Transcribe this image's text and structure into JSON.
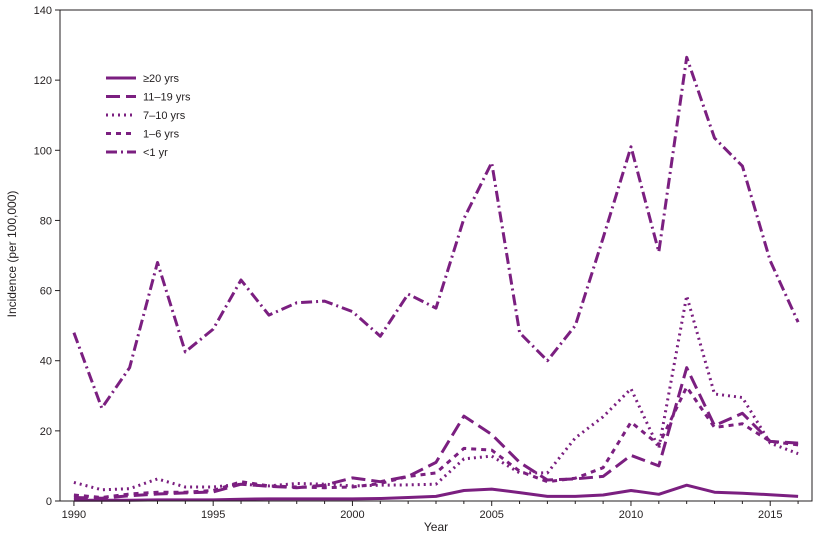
{
  "chart_data": {
    "type": "line",
    "title": "",
    "xlabel": "Year",
    "ylabel": "Incidence (per 100,000)",
    "xlim": [
      1989.5,
      2016.5
    ],
    "ylim": [
      0,
      140
    ],
    "x_ticks": [
      1990,
      1995,
      2000,
      2005,
      2010,
      2015
    ],
    "y_ticks": [
      0,
      20,
      40,
      60,
      80,
      100,
      120,
      140
    ],
    "grid": false,
    "legend_position": "top-left",
    "line_color": "#7b1f80",
    "x": [
      1990,
      1991,
      1992,
      1993,
      1994,
      1995,
      1996,
      1997,
      1998,
      1999,
      2000,
      2001,
      2002,
      2003,
      2004,
      2005,
      2006,
      2007,
      2008,
      2009,
      2010,
      2011,
      2012,
      2013,
      2014,
      2015,
      2016
    ],
    "series": [
      {
        "name": "≥20 yrs",
        "dash": "solid",
        "values": [
          0.2,
          0.2,
          0.2,
          0.3,
          0.3,
          0.3,
          0.5,
          0.6,
          0.6,
          0.6,
          0.6,
          0.7,
          1.0,
          1.3,
          3.0,
          3.4,
          2.4,
          1.3,
          1.3,
          1.7,
          3.0,
          1.9,
          4.5,
          2.5,
          2.2,
          1.8,
          1.3
        ]
      },
      {
        "name": "11–19 yrs",
        "dash": "long-dash",
        "values": [
          1.0,
          0.8,
          1.5,
          2.0,
          2.3,
          2.6,
          4.8,
          4.2,
          3.8,
          4.5,
          6.6,
          5.5,
          7.0,
          11.0,
          24.2,
          19.0,
          11.0,
          6.0,
          6.3,
          7.0,
          13.0,
          10.0,
          38.0,
          21.5,
          25.0,
          17.0,
          16.5
        ]
      },
      {
        "name": "7–10 yrs",
        "dash": "dotted",
        "values": [
          5.3,
          3.2,
          3.5,
          6.3,
          4.0,
          4.0,
          4.8,
          4.3,
          5.0,
          4.8,
          4.3,
          4.5,
          4.6,
          4.8,
          12.0,
          12.8,
          8.0,
          8.0,
          18.0,
          24.0,
          32.0,
          15.0,
          58.5,
          30.5,
          29.5,
          16.5,
          13.5
        ]
      },
      {
        "name": "1–6 yrs",
        "dash": "short-dash",
        "values": [
          1.7,
          1.0,
          2.0,
          2.5,
          2.5,
          3.0,
          5.5,
          4.3,
          4.0,
          3.8,
          4.0,
          5.0,
          7.0,
          8.0,
          15.0,
          14.5,
          8.5,
          5.5,
          6.5,
          9.5,
          22.5,
          16.0,
          32.5,
          21.0,
          22.0,
          17.0,
          16.0
        ]
      },
      {
        "name": "<1 yr",
        "dash": "dash-dot",
        "values": [
          48.0,
          26.5,
          38.0,
          68.0,
          42.5,
          49.0,
          63.0,
          53.0,
          56.5,
          57.0,
          54.0,
          47.0,
          59.0,
          55.0,
          80.5,
          96.5,
          48.0,
          40.0,
          50.0,
          75.0,
          101.0,
          71.0,
          126.5,
          103.5,
          95.5,
          68.5,
          51.0
        ]
      }
    ]
  }
}
